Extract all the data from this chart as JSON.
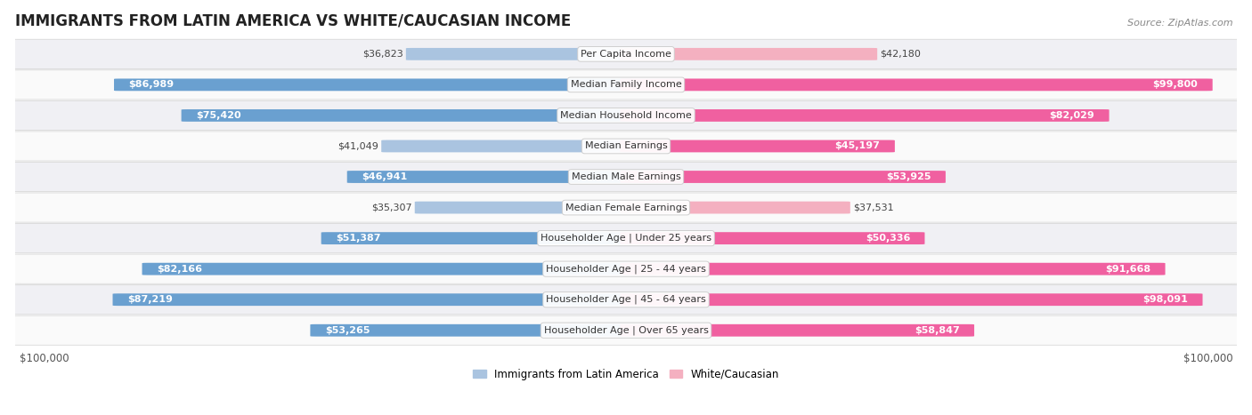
{
  "title": "IMMIGRANTS FROM LATIN AMERICA VS WHITE/CAUCASIAN INCOME",
  "source": "Source: ZipAtlas.com",
  "categories": [
    "Per Capita Income",
    "Median Family Income",
    "Median Household Income",
    "Median Earnings",
    "Median Male Earnings",
    "Median Female Earnings",
    "Householder Age | Under 25 years",
    "Householder Age | 25 - 44 years",
    "Householder Age | 45 - 64 years",
    "Householder Age | Over 65 years"
  ],
  "latin_america": [
    36823,
    86989,
    75420,
    41049,
    46941,
    35307,
    51387,
    82166,
    87219,
    53265
  ],
  "white_caucasian": [
    42180,
    99800,
    82029,
    45197,
    53925,
    37531,
    50336,
    91668,
    98091,
    58847
  ],
  "latin_labels": [
    "$36,823",
    "$86,989",
    "$75,420",
    "$41,049",
    "$46,941",
    "$35,307",
    "$51,387",
    "$82,166",
    "$87,219",
    "$53,265"
  ],
  "white_labels": [
    "$42,180",
    "$99,800",
    "$82,029",
    "$45,197",
    "$53,925",
    "$37,531",
    "$50,336",
    "$91,668",
    "$98,091",
    "$58,847"
  ],
  "max_value": 100000,
  "blue_light": "#aac4e0",
  "blue_dark": "#6aa0d0",
  "pink_light": "#f4b0c0",
  "pink_dark": "#f060a0",
  "inside_threshold": 0.45,
  "bg_row_alt": "#f0f0f4",
  "bg_row_white": "#fafafa",
  "row_edge": "#d8d8d8",
  "bar_height": 0.38,
  "legend_blue": "Immigrants from Latin America",
  "legend_pink": "White/Caucasian",
  "title_fontsize": 12,
  "label_fontsize": 8,
  "category_fontsize": 8,
  "source_fontsize": 8
}
